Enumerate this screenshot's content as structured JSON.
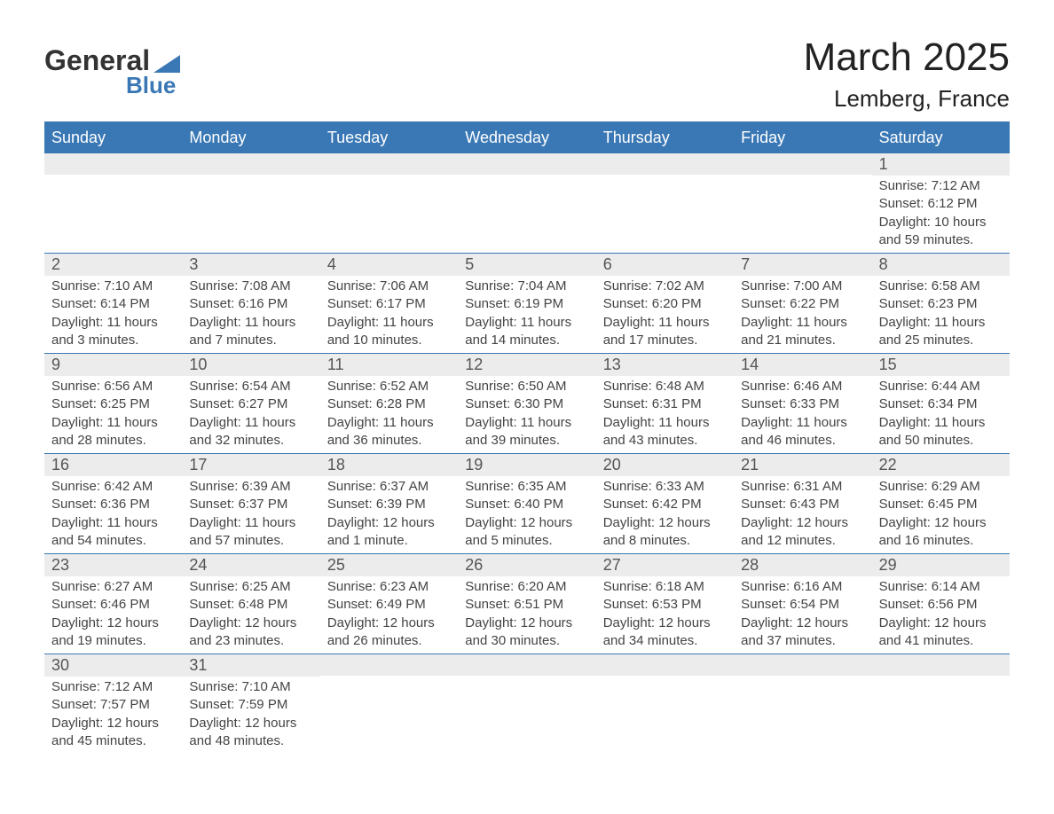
{
  "logo": {
    "top": "General",
    "bottom": "Blue"
  },
  "title": "March 2025",
  "subtitle": "Lemberg, France",
  "colors": {
    "header_bg": "#3a78b5",
    "header_text": "#ffffff",
    "daynum_bg": "#ececec",
    "border": "#3a78b5",
    "body_text": "#444444"
  },
  "dayNames": [
    "Sunday",
    "Monday",
    "Tuesday",
    "Wednesday",
    "Thursday",
    "Friday",
    "Saturday"
  ],
  "weeks": [
    [
      {
        "blank": true
      },
      {
        "blank": true
      },
      {
        "blank": true
      },
      {
        "blank": true
      },
      {
        "blank": true
      },
      {
        "blank": true
      },
      {
        "day": "1",
        "sunrise": "Sunrise: 7:12 AM",
        "sunset": "Sunset: 6:12 PM",
        "day1": "Daylight: 10 hours",
        "day2": "and 59 minutes."
      }
    ],
    [
      {
        "day": "2",
        "sunrise": "Sunrise: 7:10 AM",
        "sunset": "Sunset: 6:14 PM",
        "day1": "Daylight: 11 hours",
        "day2": "and 3 minutes."
      },
      {
        "day": "3",
        "sunrise": "Sunrise: 7:08 AM",
        "sunset": "Sunset: 6:16 PM",
        "day1": "Daylight: 11 hours",
        "day2": "and 7 minutes."
      },
      {
        "day": "4",
        "sunrise": "Sunrise: 7:06 AM",
        "sunset": "Sunset: 6:17 PM",
        "day1": "Daylight: 11 hours",
        "day2": "and 10 minutes."
      },
      {
        "day": "5",
        "sunrise": "Sunrise: 7:04 AM",
        "sunset": "Sunset: 6:19 PM",
        "day1": "Daylight: 11 hours",
        "day2": "and 14 minutes."
      },
      {
        "day": "6",
        "sunrise": "Sunrise: 7:02 AM",
        "sunset": "Sunset: 6:20 PM",
        "day1": "Daylight: 11 hours",
        "day2": "and 17 minutes."
      },
      {
        "day": "7",
        "sunrise": "Sunrise: 7:00 AM",
        "sunset": "Sunset: 6:22 PM",
        "day1": "Daylight: 11 hours",
        "day2": "and 21 minutes."
      },
      {
        "day": "8",
        "sunrise": "Sunrise: 6:58 AM",
        "sunset": "Sunset: 6:23 PM",
        "day1": "Daylight: 11 hours",
        "day2": "and 25 minutes."
      }
    ],
    [
      {
        "day": "9",
        "sunrise": "Sunrise: 6:56 AM",
        "sunset": "Sunset: 6:25 PM",
        "day1": "Daylight: 11 hours",
        "day2": "and 28 minutes."
      },
      {
        "day": "10",
        "sunrise": "Sunrise: 6:54 AM",
        "sunset": "Sunset: 6:27 PM",
        "day1": "Daylight: 11 hours",
        "day2": "and 32 minutes."
      },
      {
        "day": "11",
        "sunrise": "Sunrise: 6:52 AM",
        "sunset": "Sunset: 6:28 PM",
        "day1": "Daylight: 11 hours",
        "day2": "and 36 minutes."
      },
      {
        "day": "12",
        "sunrise": "Sunrise: 6:50 AM",
        "sunset": "Sunset: 6:30 PM",
        "day1": "Daylight: 11 hours",
        "day2": "and 39 minutes."
      },
      {
        "day": "13",
        "sunrise": "Sunrise: 6:48 AM",
        "sunset": "Sunset: 6:31 PM",
        "day1": "Daylight: 11 hours",
        "day2": "and 43 minutes."
      },
      {
        "day": "14",
        "sunrise": "Sunrise: 6:46 AM",
        "sunset": "Sunset: 6:33 PM",
        "day1": "Daylight: 11 hours",
        "day2": "and 46 minutes."
      },
      {
        "day": "15",
        "sunrise": "Sunrise: 6:44 AM",
        "sunset": "Sunset: 6:34 PM",
        "day1": "Daylight: 11 hours",
        "day2": "and 50 minutes."
      }
    ],
    [
      {
        "day": "16",
        "sunrise": "Sunrise: 6:42 AM",
        "sunset": "Sunset: 6:36 PM",
        "day1": "Daylight: 11 hours",
        "day2": "and 54 minutes."
      },
      {
        "day": "17",
        "sunrise": "Sunrise: 6:39 AM",
        "sunset": "Sunset: 6:37 PM",
        "day1": "Daylight: 11 hours",
        "day2": "and 57 minutes."
      },
      {
        "day": "18",
        "sunrise": "Sunrise: 6:37 AM",
        "sunset": "Sunset: 6:39 PM",
        "day1": "Daylight: 12 hours",
        "day2": "and 1 minute."
      },
      {
        "day": "19",
        "sunrise": "Sunrise: 6:35 AM",
        "sunset": "Sunset: 6:40 PM",
        "day1": "Daylight: 12 hours",
        "day2": "and 5 minutes."
      },
      {
        "day": "20",
        "sunrise": "Sunrise: 6:33 AM",
        "sunset": "Sunset: 6:42 PM",
        "day1": "Daylight: 12 hours",
        "day2": "and 8 minutes."
      },
      {
        "day": "21",
        "sunrise": "Sunrise: 6:31 AM",
        "sunset": "Sunset: 6:43 PM",
        "day1": "Daylight: 12 hours",
        "day2": "and 12 minutes."
      },
      {
        "day": "22",
        "sunrise": "Sunrise: 6:29 AM",
        "sunset": "Sunset: 6:45 PM",
        "day1": "Daylight: 12 hours",
        "day2": "and 16 minutes."
      }
    ],
    [
      {
        "day": "23",
        "sunrise": "Sunrise: 6:27 AM",
        "sunset": "Sunset: 6:46 PM",
        "day1": "Daylight: 12 hours",
        "day2": "and 19 minutes."
      },
      {
        "day": "24",
        "sunrise": "Sunrise: 6:25 AM",
        "sunset": "Sunset: 6:48 PM",
        "day1": "Daylight: 12 hours",
        "day2": "and 23 minutes."
      },
      {
        "day": "25",
        "sunrise": "Sunrise: 6:23 AM",
        "sunset": "Sunset: 6:49 PM",
        "day1": "Daylight: 12 hours",
        "day2": "and 26 minutes."
      },
      {
        "day": "26",
        "sunrise": "Sunrise: 6:20 AM",
        "sunset": "Sunset: 6:51 PM",
        "day1": "Daylight: 12 hours",
        "day2": "and 30 minutes."
      },
      {
        "day": "27",
        "sunrise": "Sunrise: 6:18 AM",
        "sunset": "Sunset: 6:53 PM",
        "day1": "Daylight: 12 hours",
        "day2": "and 34 minutes."
      },
      {
        "day": "28",
        "sunrise": "Sunrise: 6:16 AM",
        "sunset": "Sunset: 6:54 PM",
        "day1": "Daylight: 12 hours",
        "day2": "and 37 minutes."
      },
      {
        "day": "29",
        "sunrise": "Sunrise: 6:14 AM",
        "sunset": "Sunset: 6:56 PM",
        "day1": "Daylight: 12 hours",
        "day2": "and 41 minutes."
      }
    ],
    [
      {
        "day": "30",
        "sunrise": "Sunrise: 7:12 AM",
        "sunset": "Sunset: 7:57 PM",
        "day1": "Daylight: 12 hours",
        "day2": "and 45 minutes."
      },
      {
        "day": "31",
        "sunrise": "Sunrise: 7:10 AM",
        "sunset": "Sunset: 7:59 PM",
        "day1": "Daylight: 12 hours",
        "day2": "and 48 minutes."
      },
      {
        "blank": true
      },
      {
        "blank": true
      },
      {
        "blank": true
      },
      {
        "blank": true
      },
      {
        "blank": true
      }
    ]
  ]
}
